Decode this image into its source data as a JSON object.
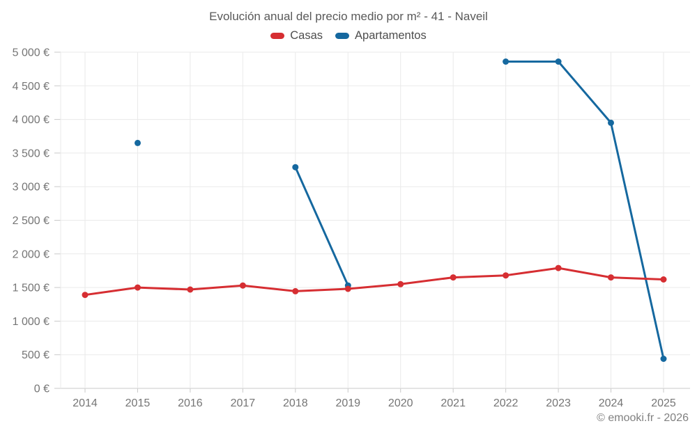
{
  "chart_data": {
    "type": "line",
    "title": "Evolución anual del precio medio por m² - 41 - Naveil",
    "categories": [
      "2014",
      "2015",
      "2016",
      "2017",
      "2018",
      "2019",
      "2020",
      "2021",
      "2022",
      "2023",
      "2024",
      "2025"
    ],
    "series": [
      {
        "name": "Casas",
        "color": "#d62e32",
        "values": [
          1390,
          1500,
          1470,
          1530,
          1445,
          1480,
          1550,
          1650,
          1680,
          1790,
          1650,
          1620
        ]
      },
      {
        "name": "Apartamentos",
        "color": "#15689f",
        "values": [
          null,
          3650,
          null,
          null,
          3290,
          1530,
          null,
          null,
          4860,
          4860,
          3950,
          440
        ]
      }
    ],
    "xlabel": "",
    "ylabel": "",
    "ylim": [
      0,
      5000
    ],
    "ytick_step": 500,
    "ytick_labels": [
      "0 €",
      "500 €",
      "1 000 €",
      "1 500 €",
      "2 000 €",
      "2 500 €",
      "3 000 €",
      "3 500 €",
      "4 000 €",
      "4 500 €",
      "5 000 €"
    ],
    "grid": true,
    "legend_position": "top-center"
  },
  "footer": {
    "copyright": "© emooki.fr - 2026"
  },
  "theme": {
    "background": "#ffffff",
    "grid_color": "#eaeaea",
    "axis_color": "#c9c9c9",
    "tick_label_color": "#757575",
    "title_color": "#595959",
    "legend_text_color": "#4d4d4d",
    "footer_color": "#808080"
  }
}
